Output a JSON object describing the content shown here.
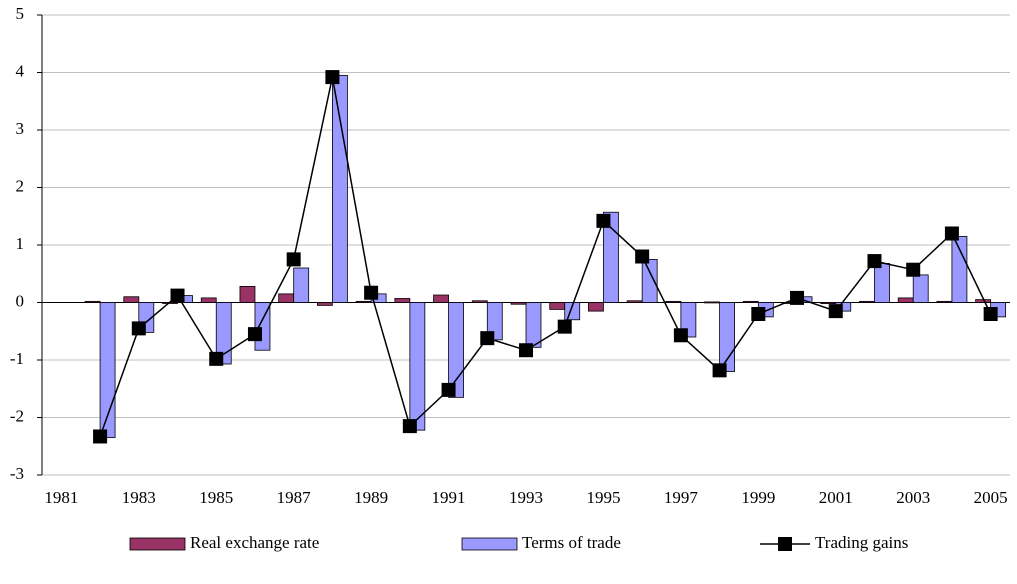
{
  "chart_data": {
    "type": "bar-line",
    "categories": [
      "1981",
      null,
      "1983",
      null,
      "1985",
      null,
      "1987",
      null,
      "1989",
      null,
      "1991",
      null,
      "1993",
      null,
      "1995",
      null,
      "1997",
      null,
      "1999",
      null,
      "2001",
      null,
      "2003",
      null,
      "2005"
    ],
    "series": [
      {
        "name": "Real exchange rate",
        "type": "bar",
        "color": "#993366",
        "values": [
          null,
          0.02,
          0.1,
          0.0,
          0.08,
          0.28,
          0.15,
          -0.05,
          0.02,
          0.07,
          0.13,
          0.03,
          -0.03,
          -0.12,
          -0.15,
          0.03,
          0.02,
          0.01,
          0.02,
          0.0,
          -0.02,
          0.02,
          0.08,
          0.02,
          0.05
        ]
      },
      {
        "name": "Terms of trade",
        "type": "bar",
        "color": "#9999ff",
        "values": [
          null,
          -2.35,
          -0.52,
          0.12,
          -1.07,
          -0.83,
          0.6,
          3.95,
          0.15,
          -2.22,
          -1.65,
          -0.65,
          -0.78,
          -0.3,
          1.57,
          0.75,
          -0.6,
          -1.2,
          -0.25,
          0.1,
          -0.15,
          0.68,
          0.48,
          1.15,
          -0.25
        ]
      },
      {
        "name": "Trading gains",
        "type": "line",
        "color": "#000000",
        "values": [
          null,
          -2.33,
          -0.45,
          0.12,
          -0.98,
          -0.55,
          0.75,
          3.92,
          0.17,
          -2.15,
          -1.52,
          -0.62,
          -0.83,
          -0.42,
          1.42,
          0.8,
          -0.57,
          -1.18,
          -0.2,
          0.08,
          -0.15,
          0.72,
          0.57,
          1.2,
          -0.2
        ]
      }
    ],
    "ylim": [
      -3,
      5
    ],
    "yticks": [
      -3,
      -2,
      -1,
      0,
      1,
      2,
      3,
      4,
      5
    ],
    "grid": true,
    "legend": "bottom"
  }
}
